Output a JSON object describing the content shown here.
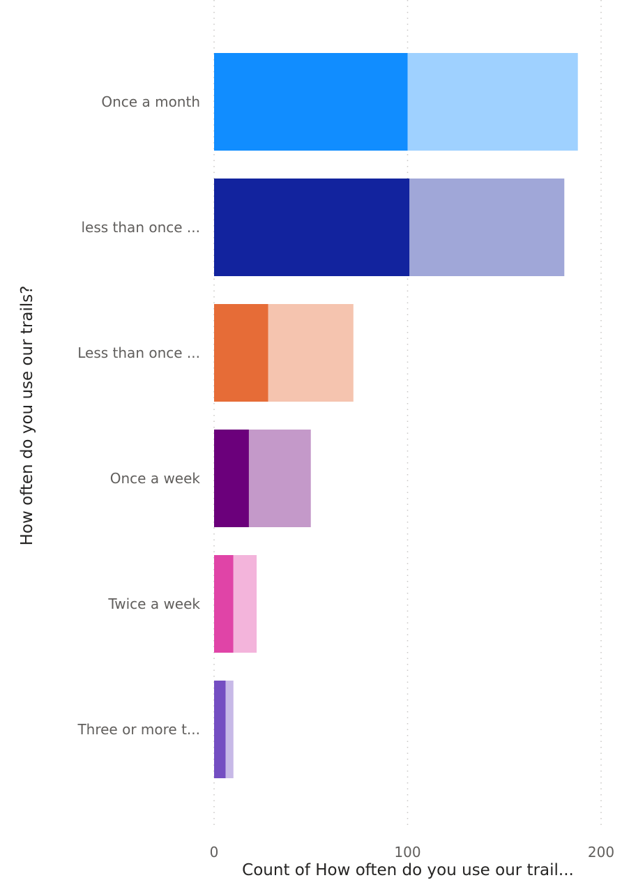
{
  "chart_data": {
    "type": "bar",
    "orientation": "horizontal",
    "stacked": true,
    "categories": [
      "Once a month",
      "less than once ...",
      "Less than once ...",
      "Once a week",
      "Twice a week",
      "Three or more t..."
    ],
    "series": [
      {
        "values": [
          100,
          101,
          28,
          18,
          10,
          6
        ]
      },
      {
        "values": [
          88,
          80,
          44,
          32,
          12,
          4
        ]
      }
    ],
    "bar_colors": [
      [
        "#118dff",
        "#9fd1ff"
      ],
      [
        "#12239e",
        "#a0a7d8"
      ],
      [
        "#e66c37",
        "#f5c4af"
      ],
      [
        "#6b007b",
        "#c499c9"
      ],
      [
        "#e044a7",
        "#f3b4db"
      ],
      [
        "#744ec2",
        "#c7b9e7"
      ]
    ],
    "xlim": [
      0,
      200
    ],
    "x_ticks": [
      "0",
      "100",
      "200"
    ],
    "xlabel": "Count of How often do you use our trail...",
    "ylabel": "How often do you use our trails?",
    "grid": true
  }
}
